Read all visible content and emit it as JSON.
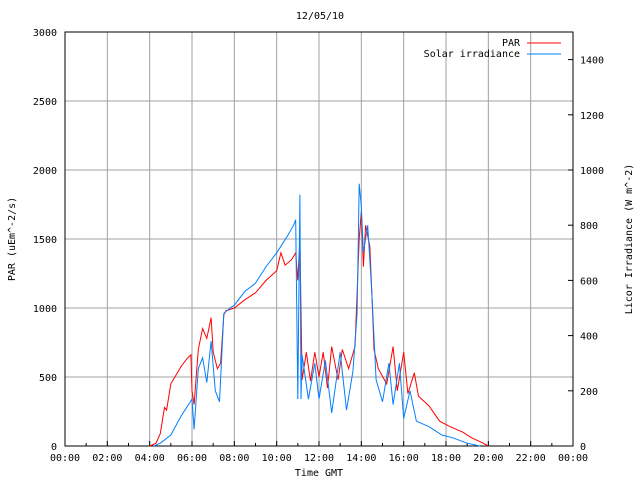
{
  "chart_data": {
    "type": "line",
    "title": "12/05/10",
    "xlabel": "Time GMT",
    "ylabel": "PAR (uEm^-2/s)",
    "y2label": "Licor Irradiance (W m^-2)",
    "xlim": [
      0,
      24
    ],
    "ylim": [
      0,
      3000
    ],
    "y2lim": [
      0,
      1500
    ],
    "x_ticks": [
      0,
      2,
      4,
      6,
      8,
      10,
      12,
      14,
      16,
      18,
      20,
      22,
      24
    ],
    "x_tick_labels": [
      "00:00",
      "02:00",
      "04:00",
      "06:00",
      "08:00",
      "10:00",
      "12:00",
      "14:00",
      "16:00",
      "18:00",
      "20:00",
      "22:00",
      "00:00"
    ],
    "y_ticks": [
      0,
      500,
      1000,
      1500,
      2000,
      2500,
      3000
    ],
    "y_tick_labels": [
      "0",
      "500",
      "1000",
      "1500",
      "2000",
      "2500",
      "3000"
    ],
    "y2_ticks": [
      0,
      200,
      400,
      600,
      800,
      1000,
      1200,
      1400
    ],
    "y2_tick_labels": [
      "0",
      "200",
      "400",
      "600",
      "800",
      "1000",
      "1200",
      "1400"
    ],
    "grid": true,
    "legend_position": "top-right",
    "series": [
      {
        "name": "PAR",
        "axis": "left",
        "color": "#ff0000",
        "x": [
          4.0,
          4.3,
          4.5,
          4.7,
          4.8,
          5.0,
          5.5,
          5.8,
          5.95,
          6.0,
          6.1,
          6.3,
          6.5,
          6.7,
          6.9,
          7.0,
          7.2,
          7.35,
          7.5,
          7.6,
          8.0,
          8.5,
          9.0,
          9.5,
          10.0,
          10.2,
          10.4,
          10.7,
          10.9,
          11.0,
          11.1,
          11.2,
          11.4,
          11.6,
          11.8,
          12.0,
          12.2,
          12.4,
          12.6,
          12.9,
          13.1,
          13.4,
          13.7,
          13.9,
          14.0,
          14.1,
          14.2,
          14.4,
          14.5,
          14.6,
          14.8,
          15.2,
          15.5,
          15.7,
          16.0,
          16.2,
          16.5,
          16.7,
          17.2,
          17.7,
          18.2,
          18.8,
          19.2,
          19.7,
          20.0
        ],
        "values": [
          0,
          20,
          90,
          280,
          260,
          450,
          580,
          640,
          660,
          400,
          300,
          700,
          850,
          780,
          930,
          680,
          560,
          600,
          950,
          980,
          1000,
          1060,
          1110,
          1200,
          1270,
          1400,
          1310,
          1350,
          1400,
          1200,
          1500,
          480,
          680,
          470,
          680,
          500,
          680,
          420,
          720,
          480,
          700,
          560,
          720,
          1500,
          1700,
          1300,
          1600,
          1450,
          1100,
          700,
          560,
          450,
          720,
          400,
          680,
          380,
          530,
          360,
          290,
          180,
          140,
          100,
          60,
          25,
          0
        ]
      },
      {
        "name": "Solar irradiance",
        "axis": "right",
        "color": "#0080ff",
        "x": [
          4.2,
          4.5,
          5.0,
          5.5,
          6.0,
          6.1,
          6.3,
          6.5,
          6.7,
          6.9,
          7.1,
          7.3,
          7.5,
          7.8,
          8.0,
          8.5,
          9.0,
          9.5,
          10.0,
          10.5,
          10.8,
          10.9,
          11.0,
          11.1,
          11.15,
          11.2,
          11.5,
          11.8,
          12.0,
          12.3,
          12.6,
          13.0,
          13.3,
          13.6,
          13.8,
          13.9,
          14.0,
          14.1,
          14.3,
          14.5,
          14.7,
          15.0,
          15.3,
          15.5,
          15.8,
          16.0,
          16.3,
          16.6,
          17.2,
          17.8,
          18.3,
          19.0,
          19.6
        ],
        "values": [
          0,
          10,
          40,
          110,
          170,
          60,
          280,
          320,
          230,
          380,
          200,
          160,
          480,
          500,
          510,
          560,
          590,
          650,
          700,
          760,
          800,
          820,
          170,
          910,
          170,
          330,
          170,
          300,
          170,
          310,
          120,
          340,
          130,
          270,
          480,
          950,
          870,
          700,
          800,
          550,
          240,
          160,
          300,
          150,
          300,
          100,
          200,
          90,
          70,
          40,
          30,
          10,
          0
        ]
      }
    ]
  }
}
